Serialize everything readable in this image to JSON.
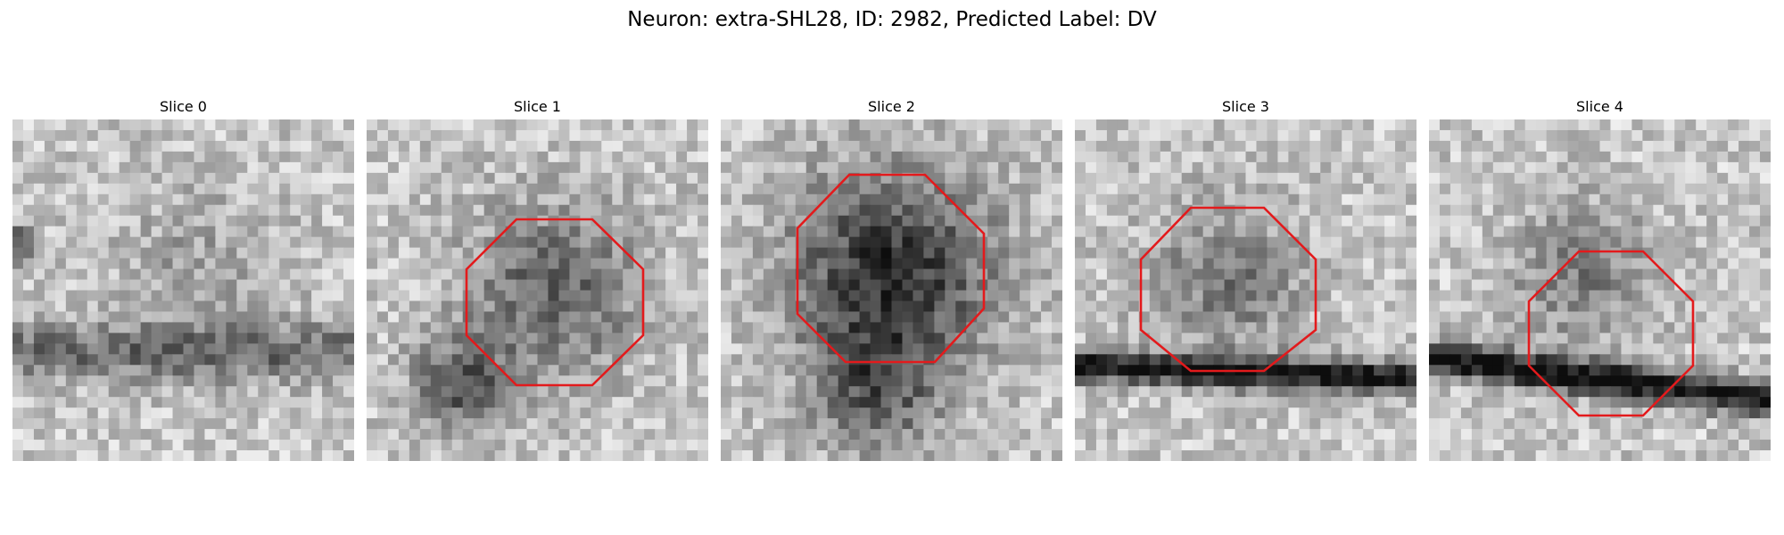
{
  "figure": {
    "title": "Neuron: extra-SHL28, ID: 2982, Predicted Label: DV",
    "outline_color": "#e31a1c"
  },
  "slices": [
    {
      "title": "Slice 0",
      "has_outline": false,
      "dark_band": "left"
    },
    {
      "title": "Slice 1",
      "has_outline": true,
      "dark_band": "bottom-left"
    },
    {
      "title": "Slice 2",
      "has_outline": true,
      "dark_band": "bottom"
    },
    {
      "title": "Slice 3",
      "has_outline": true,
      "dark_band": "lower"
    },
    {
      "title": "Slice 4",
      "has_outline": true,
      "dark_band": "lower-diagonal"
    }
  ]
}
